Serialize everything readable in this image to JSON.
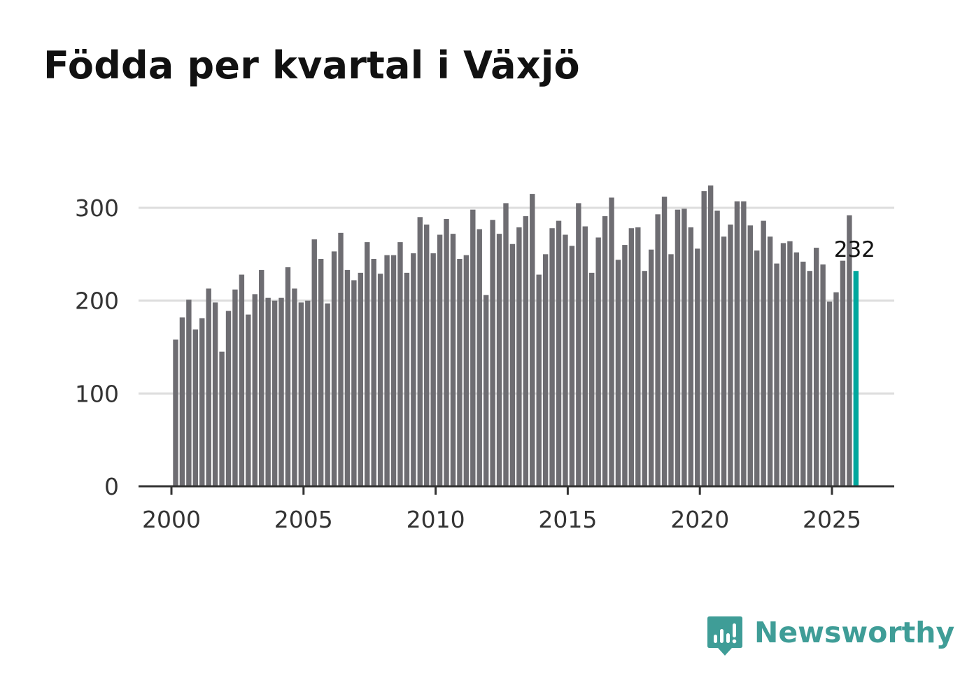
{
  "title": "Födda per kvartal i Växjö",
  "brand": {
    "name": "Newsworthy",
    "color": "#3f9d97",
    "icon": "newsworthy-logo-icon"
  },
  "colors": {
    "bar": "#6e6d72",
    "highlight": "#00a79d",
    "grid": "#dddddd",
    "axis": "#333333"
  },
  "chart_data": {
    "type": "bar",
    "title": "Födda per kvartal i Växjö",
    "xlabel": "",
    "ylabel": "",
    "ylim": [
      0,
      325
    ],
    "xlim": [
      1999.75,
      2027.25
    ],
    "yticks": [
      0,
      100,
      200,
      300
    ],
    "xticks": [
      2000,
      2005,
      2010,
      2015,
      2020,
      2025
    ],
    "grid": true,
    "start_year": 2000,
    "start_quarter": 1,
    "values": [
      158,
      182,
      201,
      169,
      181,
      213,
      198,
      145,
      189,
      212,
      228,
      185,
      207,
      233,
      203,
      200,
      203,
      236,
      213,
      198,
      200,
      266,
      245,
      197,
      253,
      273,
      233,
      222,
      230,
      263,
      245,
      229,
      249,
      249,
      263,
      230,
      251,
      290,
      282,
      251,
      271,
      288,
      272,
      245,
      249,
      298,
      277,
      206,
      287,
      272,
      305,
      261,
      279,
      291,
      315,
      228,
      250,
      278,
      286,
      271,
      259,
      305,
      280,
      230,
      268,
      291,
      311,
      244,
      260,
      278,
      279,
      232,
      255,
      293,
      312,
      250,
      298,
      299,
      279,
      256,
      318,
      324,
      297,
      269,
      282,
      307,
      307,
      281,
      254,
      286,
      269,
      240,
      262,
      264,
      252,
      242,
      232,
      257,
      239,
      199,
      209,
      243,
      292,
      232
    ],
    "highlight_label": "232"
  }
}
